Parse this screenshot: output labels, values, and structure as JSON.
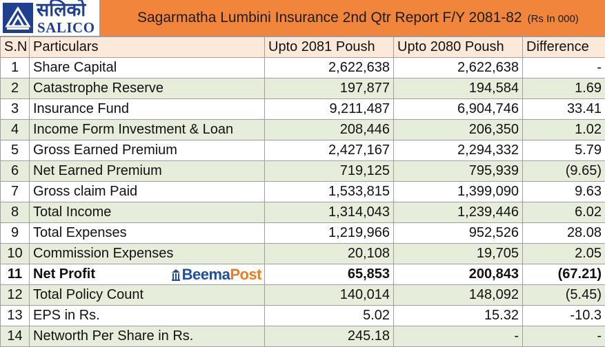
{
  "logo": {
    "devanagari": "सलिको",
    "english": "SALICO"
  },
  "title": {
    "main": "Sagarmatha Lumbini Insurance 2nd Qtr Report F/Y 2081-82",
    "unit": "(Rs In 000)"
  },
  "table": {
    "headers": [
      "S.N",
      "Particulars",
      "Upto 2081 Poush",
      "Upto 2080 Poush",
      "Difference"
    ],
    "rows": [
      {
        "sn": "1",
        "particular": "Share Capital",
        "current": "2,622,638",
        "previous": "2,622,638",
        "difference": "-"
      },
      {
        "sn": "2",
        "particular": "Catastrophe Reserve",
        "current": "197,877",
        "previous": "194,584",
        "difference": "1.69"
      },
      {
        "sn": "3",
        "particular": "Insurance Fund",
        "current": "9,211,487",
        "previous": "6,904,746",
        "difference": "33.41"
      },
      {
        "sn": "4",
        "particular": "Income Form Investment & Loan",
        "current": "208,446",
        "previous": "206,350",
        "difference": "1.02"
      },
      {
        "sn": "5",
        "particular": "Gross Earned Premium",
        "current": "2,427,167",
        "previous": "2,294,332",
        "difference": "5.79"
      },
      {
        "sn": "6",
        "particular": "Net Earned Premium",
        "current": "719,125",
        "previous": "795,939",
        "difference": "(9.65)"
      },
      {
        "sn": "7",
        "particular": "Gross claim Paid",
        "current": "1,533,815",
        "previous": "1,399,090",
        "difference": "9.63"
      },
      {
        "sn": "8",
        "particular": "Total Income",
        "current": "1,314,043",
        "previous": "1,239,446",
        "difference": "6.02"
      },
      {
        "sn": "9",
        "particular": "Total Expenses",
        "current": "1,219,966",
        "previous": "952,526",
        "difference": "28.08"
      },
      {
        "sn": "10",
        "particular": "Commission Expenses",
        "current": "20,108",
        "previous": "19,705",
        "difference": "2.05"
      },
      {
        "sn": "11",
        "particular": "Net Profit",
        "current": "65,853",
        "previous": "200,843",
        "difference": "(67.21)"
      },
      {
        "sn": "12",
        "particular": "Total Policy Count",
        "current": "140,014",
        "previous": "148,092",
        "difference": "(5.45)"
      },
      {
        "sn": "13",
        "particular": "EPS in Rs.",
        "current": "5.02",
        "previous": "15.32",
        "difference": "-10.3"
      },
      {
        "sn": "14",
        "particular": "Networth Per Share in Rs.",
        "current": "245.18",
        "previous": "-",
        "difference": "-"
      }
    ]
  },
  "watermark": {
    "part1": "Beema",
    "part2": "Post"
  },
  "colors": {
    "header_bg": "#f0853b",
    "column_header_bg": "#fde9d9",
    "row_shade": "#e6eedb",
    "logo_blue": "#1f3f8f",
    "watermark_blue": "#1f4e9f",
    "watermark_orange": "#ef7b22"
  }
}
